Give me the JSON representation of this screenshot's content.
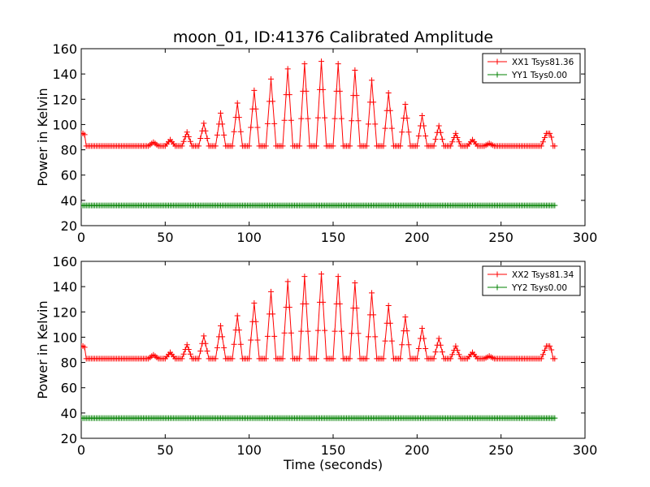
{
  "title": "moon_01, ID:41376 Calibrated Amplitude",
  "colors": {
    "xx": "#ff0000",
    "yy": "#008000"
  },
  "chart_data": [
    {
      "type": "line",
      "xlabel": "",
      "ylabel": "Power in Kelvin",
      "xlim": [
        0,
        300
      ],
      "ylim": [
        20,
        160
      ],
      "xticks": [
        "0",
        "50",
        "100",
        "150",
        "200",
        "250",
        "300"
      ],
      "yticks": [
        "20",
        "40",
        "60",
        "80",
        "100",
        "120",
        "140",
        "160"
      ],
      "legend_position": "top-right",
      "series": [
        {
          "name": "XX1 Tsys81.36",
          "color": "#ff0000",
          "marker": "plus",
          "x": [
            0,
            1,
            2,
            3,
            4,
            5,
            10,
            20,
            30,
            40,
            43,
            46,
            50,
            53,
            56,
            60,
            63,
            66,
            70,
            73,
            76,
            80,
            83,
            86,
            90,
            93,
            96,
            100,
            103,
            106,
            110,
            113,
            116,
            120,
            123,
            126,
            130,
            133,
            136,
            140,
            143,
            146,
            150,
            153,
            156,
            160,
            163,
            166,
            170,
            173,
            176,
            180,
            183,
            186,
            190,
            193,
            196,
            200,
            203,
            206,
            210,
            213,
            216,
            220,
            223,
            226,
            230,
            233,
            236,
            240,
            243,
            246,
            250,
            260,
            270,
            274,
            277,
            279,
            280,
            281,
            282
          ],
          "y": [
            93,
            93,
            92,
            83,
            83,
            83,
            83,
            83,
            83,
            83,
            86,
            83,
            83,
            88,
            83,
            83,
            94,
            83,
            83,
            101,
            83,
            83,
            109,
            83,
            83,
            117,
            83,
            83,
            127,
            83,
            83,
            136,
            83,
            83,
            144,
            83,
            83,
            148,
            83,
            83,
            150,
            83,
            83,
            148,
            83,
            83,
            143,
            83,
            83,
            135,
            83,
            83,
            125,
            83,
            83,
            116,
            83,
            83,
            107,
            83,
            83,
            99,
            83,
            83,
            93,
            83,
            83,
            88,
            83,
            83,
            85,
            83,
            83,
            83,
            83,
            83,
            93,
            93,
            90,
            83,
            83
          ]
        },
        {
          "name": "YY1 Tsys0.00",
          "color": "#008000",
          "marker": "plus",
          "x": [
            0,
            282
          ],
          "y": [
            36,
            36
          ]
        }
      ]
    },
    {
      "type": "line",
      "xlabel": "Time (seconds)",
      "ylabel": "Power in Kelvin",
      "xlim": [
        0,
        300
      ],
      "ylim": [
        20,
        160
      ],
      "xticks": [
        "0",
        "50",
        "100",
        "150",
        "200",
        "250",
        "300"
      ],
      "yticks": [
        "20",
        "40",
        "60",
        "80",
        "100",
        "120",
        "140",
        "160"
      ],
      "legend_position": "top-right",
      "series": [
        {
          "name": "XX2 Tsys81.34",
          "color": "#ff0000",
          "marker": "plus",
          "x": [
            0,
            1,
            2,
            3,
            4,
            5,
            10,
            20,
            30,
            40,
            43,
            46,
            50,
            53,
            56,
            60,
            63,
            66,
            70,
            73,
            76,
            80,
            83,
            86,
            90,
            93,
            96,
            100,
            103,
            106,
            110,
            113,
            116,
            120,
            123,
            126,
            130,
            133,
            136,
            140,
            143,
            146,
            150,
            153,
            156,
            160,
            163,
            166,
            170,
            173,
            176,
            180,
            183,
            186,
            190,
            193,
            196,
            200,
            203,
            206,
            210,
            213,
            216,
            220,
            223,
            226,
            230,
            233,
            236,
            240,
            243,
            246,
            250,
            260,
            270,
            274,
            277,
            279,
            280,
            281,
            282
          ],
          "y": [
            93,
            93,
            92,
            83,
            83,
            83,
            83,
            83,
            83,
            83,
            86,
            83,
            83,
            88,
            83,
            83,
            94,
            83,
            83,
            101,
            83,
            83,
            109,
            83,
            83,
            117,
            83,
            83,
            127,
            83,
            83,
            136,
            83,
            83,
            144,
            83,
            83,
            148,
            83,
            83,
            150,
            83,
            83,
            148,
            83,
            83,
            143,
            83,
            83,
            135,
            83,
            83,
            125,
            83,
            83,
            116,
            83,
            83,
            107,
            83,
            83,
            99,
            83,
            83,
            93,
            83,
            83,
            88,
            83,
            83,
            85,
            83,
            83,
            83,
            83,
            83,
            93,
            93,
            90,
            83,
            83
          ]
        },
        {
          "name": "YY2 Tsys0.00",
          "color": "#008000",
          "marker": "plus",
          "x": [
            0,
            282
          ],
          "y": [
            36,
            36
          ]
        }
      ]
    }
  ]
}
